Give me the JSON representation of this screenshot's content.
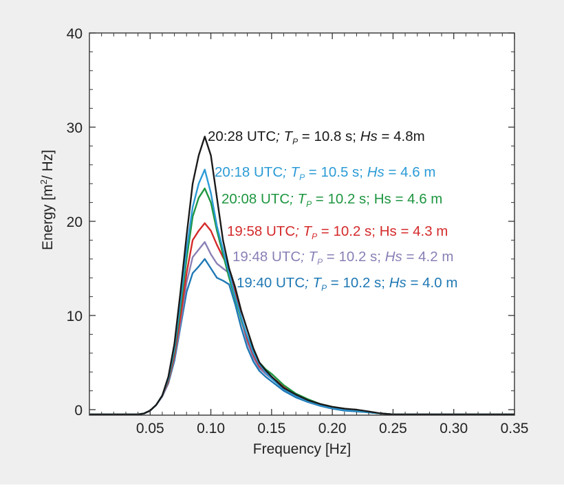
{
  "chart_data": {
    "type": "line",
    "title": "",
    "xlabel": "Frequency [Hz]",
    "ylabel_parts": {
      "pre": "Energy [m",
      "sup": "2",
      "post": "/ Hz]"
    },
    "xlim": [
      0.0,
      0.35
    ],
    "ylim": [
      0,
      40
    ],
    "x_ticks": [
      0.05,
      0.1,
      0.15,
      0.2,
      0.25,
      0.3,
      0.35
    ],
    "x_tick_labels": [
      "0.05",
      "0.10",
      "0.15",
      "0.20",
      "0.25",
      "0.30",
      "0.35"
    ],
    "y_ticks": [
      0,
      10,
      20,
      30,
      40
    ],
    "y_tick_labels": [
      "0",
      "10",
      "20",
      "30",
      "40"
    ],
    "grid": false,
    "x": [
      0.0,
      0.04,
      0.045,
      0.05,
      0.055,
      0.06,
      0.065,
      0.07,
      0.075,
      0.08,
      0.085,
      0.09,
      0.095,
      0.1,
      0.105,
      0.11,
      0.115,
      0.12,
      0.125,
      0.13,
      0.135,
      0.14,
      0.145,
      0.15,
      0.16,
      0.17,
      0.18,
      0.19,
      0.2,
      0.21,
      0.22,
      0.23,
      0.24,
      0.25,
      0.27,
      0.3,
      0.35
    ],
    "series": [
      {
        "name": "20:28 UTC",
        "color": "#1a1a1a",
        "label_parts": [
          {
            "t": "20:28 UTC",
            "i": false
          },
          {
            "t": "; ",
            "i": true
          },
          {
            "t": "T",
            "i": true
          },
          {
            "t": "P",
            "i": true,
            "sub": true
          },
          {
            "t": "  =  10.8 s; ",
            "i": false
          },
          {
            "t": "Hs",
            "i": true
          },
          {
            "t": " = 4.8m",
            "i": false
          }
        ],
        "values": [
          -0.5,
          -0.5,
          -0.4,
          -0.1,
          0.5,
          1.5,
          3.5,
          7.0,
          12.5,
          18.5,
          24.0,
          27.0,
          29.0,
          27.0,
          22.5,
          18.0,
          15.0,
          13.0,
          10.5,
          8.5,
          6.5,
          5.0,
          4.2,
          3.5,
          2.3,
          1.6,
          1.0,
          0.6,
          0.3,
          0.1,
          0.0,
          -0.2,
          -0.4,
          -0.5,
          -0.5,
          -0.5,
          -0.5
        ]
      },
      {
        "name": "20:18 UTC",
        "color": "#2b9bd6",
        "label_parts": [
          {
            "t": "20:18 UTC",
            "i": false
          },
          {
            "t": "; ",
            "i": true
          },
          {
            "t": "T",
            "i": true
          },
          {
            "t": "P",
            "i": true,
            "sub": true
          },
          {
            "t": "  =  10.5 s; ",
            "i": false
          },
          {
            "t": "Hs",
            "i": true
          },
          {
            "t": " = 4.6 m",
            "i": false
          }
        ],
        "values": [
          -0.5,
          -0.5,
          -0.4,
          -0.1,
          0.5,
          1.5,
          3.3,
          6.5,
          11.5,
          17.0,
          21.5,
          24.0,
          25.5,
          23.0,
          19.5,
          17.0,
          14.5,
          12.0,
          9.8,
          7.8,
          6.0,
          4.8,
          4.0,
          3.3,
          2.2,
          1.5,
          0.9,
          0.5,
          0.2,
          0.0,
          -0.1,
          -0.3,
          -0.4,
          -0.5,
          -0.5,
          -0.5,
          -0.5
        ]
      },
      {
        "name": "20:08 UTC",
        "color": "#1e9640",
        "label_parts": [
          {
            "t": "20:08 UTC",
            "i": false
          },
          {
            "t": "; ",
            "i": true
          },
          {
            "t": "T",
            "i": true
          },
          {
            "t": "P",
            "i": true,
            "sub": true
          },
          {
            "t": "  =  10.2 s; Hs = 4.6 m",
            "i": false
          }
        ],
        "values": [
          -0.5,
          -0.5,
          -0.4,
          -0.1,
          0.5,
          1.5,
          3.2,
          6.2,
          10.8,
          16.0,
          20.5,
          22.5,
          23.5,
          22.0,
          19.0,
          16.5,
          14.0,
          11.8,
          9.6,
          7.8,
          6.2,
          5.0,
          4.3,
          3.8,
          2.6,
          1.7,
          1.1,
          0.6,
          0.3,
          0.1,
          -0.1,
          -0.3,
          -0.4,
          -0.5,
          -0.5,
          -0.5,
          -0.5
        ]
      },
      {
        "name": "19:58 UTC",
        "color": "#d42a2a",
        "label_parts": [
          {
            "t": "19:58 UTC",
            "i": false
          },
          {
            "t": "; ",
            "i": true
          },
          {
            "t": "T",
            "i": true
          },
          {
            "t": "P",
            "i": true,
            "sub": true
          },
          {
            "t": " =  10.2 s; Hs = 4.3 m",
            "i": false
          }
        ],
        "values": [
          -0.5,
          -0.5,
          -0.4,
          -0.1,
          0.5,
          1.5,
          3.0,
          5.8,
          9.8,
          14.5,
          18.0,
          19.0,
          19.8,
          19.0,
          17.5,
          16.2,
          15.0,
          12.5,
          9.8,
          7.5,
          5.8,
          4.6,
          4.0,
          3.5,
          2.4,
          1.6,
          1.0,
          0.6,
          0.3,
          0.1,
          -0.1,
          -0.3,
          -0.4,
          -0.5,
          -0.5,
          -0.5,
          -0.5
        ]
      },
      {
        "name": "19:48 UTC",
        "color": "#8a7fb5",
        "label_parts": [
          {
            "t": "19:48 UTC",
            "i": false
          },
          {
            "t": "; ",
            "i": true
          },
          {
            "t": "T",
            "i": true
          },
          {
            "t": "P",
            "i": true,
            "sub": true
          },
          {
            "t": " =  10.2 s; ",
            "i": false
          },
          {
            "t": "Hs",
            "i": true
          },
          {
            "t": " = 4.2 m",
            "i": false
          }
        ],
        "values": [
          -0.5,
          -0.5,
          -0.4,
          -0.1,
          0.5,
          1.4,
          2.9,
          5.5,
          9.2,
          13.5,
          16.2,
          17.0,
          17.8,
          16.5,
          15.5,
          15.0,
          14.5,
          12.5,
          9.5,
          7.2,
          5.5,
          4.4,
          3.8,
          3.3,
          2.2,
          1.5,
          0.9,
          0.5,
          0.2,
          0.0,
          -0.1,
          -0.3,
          -0.4,
          -0.5,
          -0.5,
          -0.5,
          -0.5
        ]
      },
      {
        "name": "19:40 UTC",
        "color": "#1f78b4",
        "label_parts": [
          {
            "t": "19:40 UTC",
            "i": false
          },
          {
            "t": "; ",
            "i": true
          },
          {
            "t": "T",
            "i": true
          },
          {
            "t": "P",
            "i": true,
            "sub": true
          },
          {
            "t": " =  10.2 s; ",
            "i": false
          },
          {
            "t": "Hs",
            "i": true
          },
          {
            "t": " = 4.0 m",
            "i": false
          }
        ],
        "values": [
          -0.5,
          -0.5,
          -0.4,
          -0.1,
          0.5,
          1.4,
          2.8,
          5.2,
          8.8,
          12.5,
          14.5,
          15.2,
          16.0,
          15.0,
          14.0,
          13.7,
          13.3,
          11.2,
          8.7,
          6.6,
          5.1,
          4.1,
          3.5,
          3.0,
          2.0,
          1.3,
          0.8,
          0.4,
          0.1,
          -0.1,
          -0.2,
          -0.3,
          -0.4,
          -0.5,
          -0.5,
          -0.5,
          -0.5
        ]
      }
    ]
  }
}
